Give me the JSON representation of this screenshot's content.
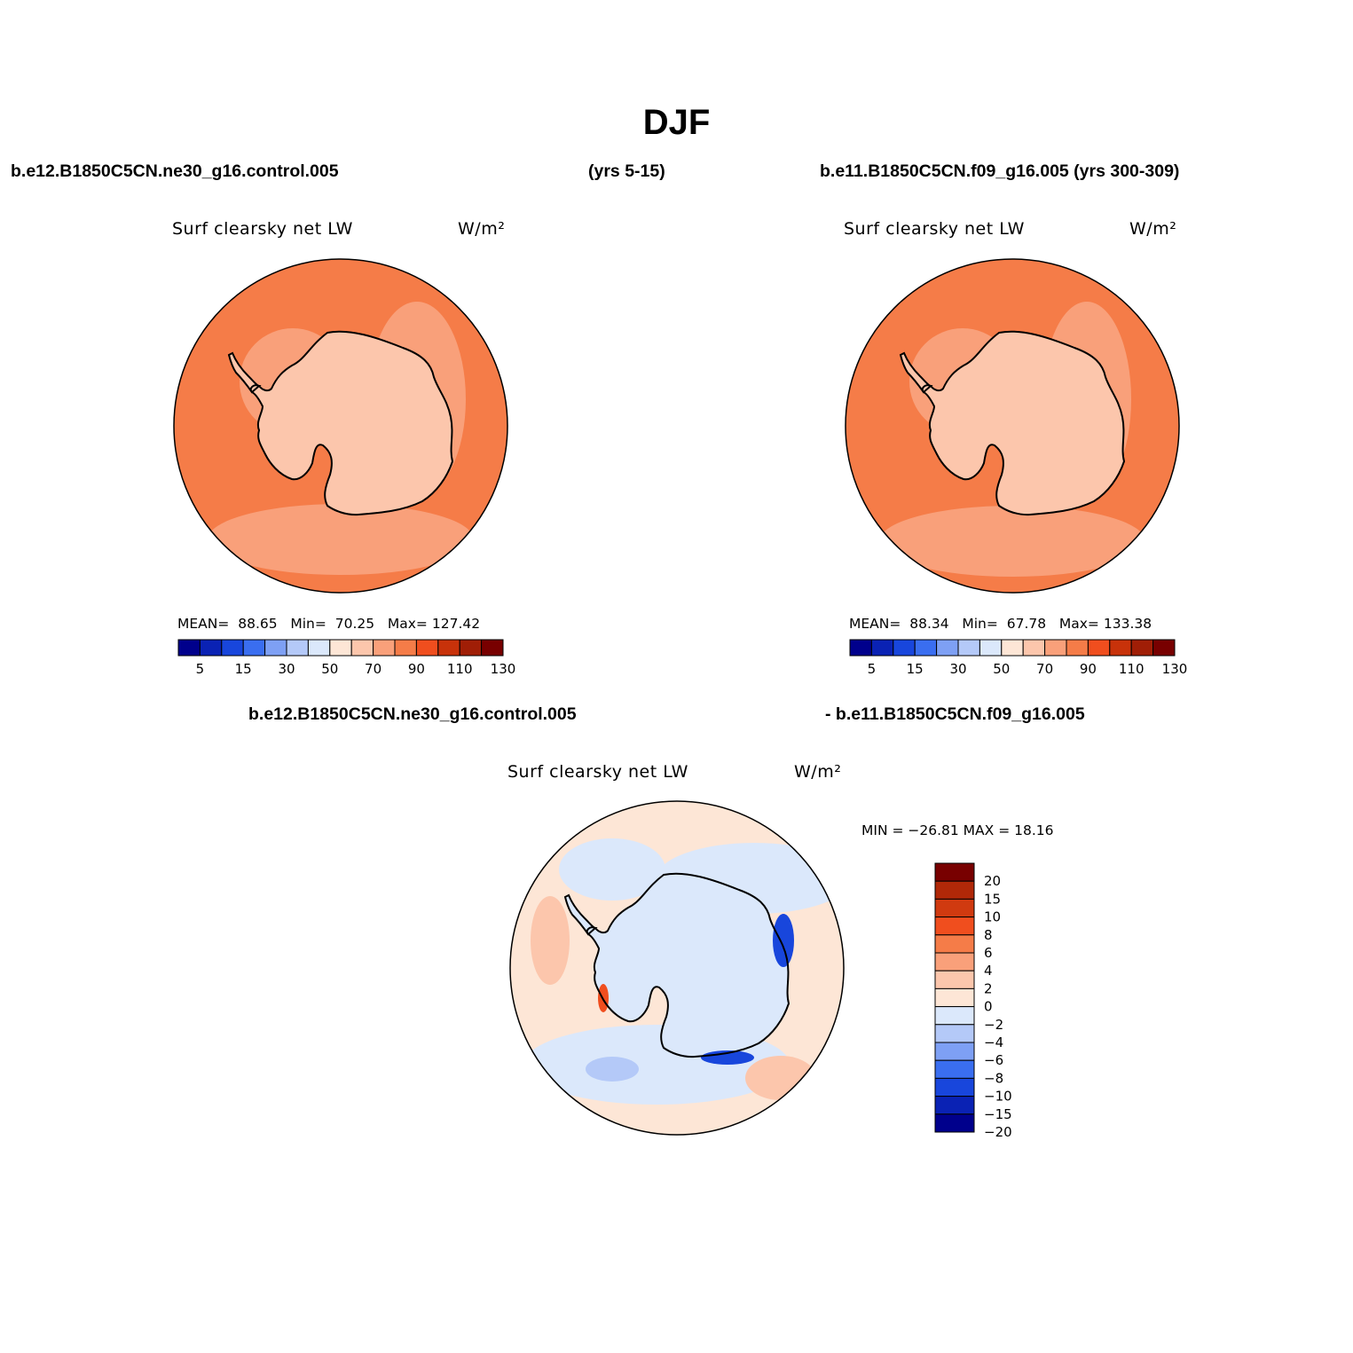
{
  "title": "DJF",
  "headers": {
    "top_left": "b.e12.B1850C5CN.ne30_g16.control.005",
    "top_mid": "(yrs 5-15)",
    "top_right": "b.e11.B1850C5CN.f09_g16.005 (yrs 300-309)",
    "diff_left": "b.e12.B1850C5CN.ne30_g16.control.005",
    "diff_right": "- b.e11.B1850C5CN.f09_g16.005"
  },
  "panels": [
    {
      "name": "Surf clearsky net LW",
      "units": "W/m²",
      "stats": {
        "mean_label": "MEAN=",
        "mean": "88.65",
        "min_label": "Min=",
        "min": "70.25",
        "max_label": "Max=",
        "max": "127.42"
      }
    },
    {
      "name": "Surf clearsky net LW",
      "units": "W/m²",
      "stats": {
        "mean_label": "MEAN=",
        "mean": "88.34",
        "min_label": "Min=",
        "min": "67.78",
        "max_label": "Max=",
        "max": "133.38"
      }
    },
    {
      "name": "Surf clearsky net LW",
      "units": "W/m²",
      "stats": {
        "text": "MIN = −26.81  MAX =   18.16"
      }
    }
  ],
  "colorbars": {
    "horizontal": {
      "colors": [
        "#00008c",
        "#0a22b4",
        "#1846dc",
        "#3a6ef0",
        "#7ea0f4",
        "#b4c9f8",
        "#dbe8fb",
        "#fde6d6",
        "#fcc6ac",
        "#f9a07a",
        "#f57c48",
        "#f04e1e",
        "#c8320a",
        "#a01e06",
        "#780000"
      ],
      "ticks": [
        "5",
        "15",
        "30",
        "50",
        "70",
        "90",
        "110",
        "130"
      ]
    },
    "vertical": {
      "colors": [
        "#780000",
        "#b02808",
        "#d03a10",
        "#f04e1e",
        "#f57c48",
        "#f9a07a",
        "#fcc6ac",
        "#fde6d6",
        "#dbe8fb",
        "#b4c9f8",
        "#7ea0f4",
        "#3a6ef0",
        "#1846dc",
        "#0a22b4",
        "#00008c"
      ],
      "ticks": [
        "20",
        "15",
        "10",
        "8",
        "6",
        "4",
        "2",
        "0",
        "−2",
        "−4",
        "−6",
        "−8",
        "−10",
        "−15",
        "−20"
      ]
    }
  },
  "map_colors": {
    "ocean": "#f57c48",
    "ocean_light": "#f9a07a",
    "land": "#fcc6ac",
    "land_light": "#fde6d6",
    "diff_pos": "#fde6d6",
    "diff_pos2": "#fcc6ac",
    "diff_neg": "#dbe8fb",
    "diff_neg2": "#b4c9f8",
    "diff_strong_neg": "#1846dc",
    "diff_strong_pos": "#f04e1e"
  }
}
